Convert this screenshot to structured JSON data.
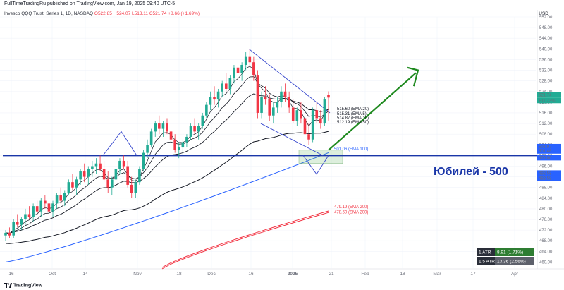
{
  "header": {
    "published": "FullTimeTradingRu published on TradingView.com, Jan 19, 2025 09:40 UTC-5",
    "symbol": "Invesco QQQ Trust, Series 1, 1D, NASDAQ",
    "ohlc": "O522.85 H524.07 L513.11 C521.74",
    "change": "+8.66 (+1.69%)",
    "currency": "USD"
  },
  "footer": {
    "brand": "TradingView"
  },
  "annotation": {
    "text": "Юбилей - 500"
  },
  "atr_table": [
    {
      "label": "1 ATR",
      "value": "8.91 (1.71%)"
    },
    {
      "label": "1.5 ATR",
      "value": "13.36 (2.56%)"
    }
  ],
  "colors": {
    "up": "#22ab94",
    "down": "#f23645",
    "ema200": "#f23645",
    "ema100": "#2962ff",
    "support": "#1a36a8",
    "arrow": "#1f8a1f",
    "channel": "#3344cc"
  },
  "chart_data": {
    "type": "candlestick",
    "ylim": [
      458,
      552
    ],
    "y_ticks": [
      460,
      464,
      468,
      472,
      476,
      480,
      484,
      488,
      492,
      496,
      500,
      504,
      508,
      512,
      516,
      520,
      524,
      528,
      532,
      536,
      540,
      544,
      548,
      552
    ],
    "x_ticks": [
      "16",
      "Oct",
      "14",
      "Nov",
      "18",
      "Dec",
      "16",
      "2025",
      "21",
      "Feb",
      "18",
      "Mar",
      "17",
      "Apr"
    ],
    "support_level": 500,
    "candles": [
      [
        470,
        472,
        468,
        471
      ],
      [
        471,
        473,
        469,
        470
      ],
      [
        470,
        476,
        469,
        475
      ],
      [
        475,
        478,
        473,
        474
      ],
      [
        474,
        477,
        472,
        476
      ],
      [
        476,
        480,
        474,
        478
      ],
      [
        478,
        481,
        476,
        477
      ],
      [
        477,
        482,
        475,
        481
      ],
      [
        481,
        483,
        478,
        479
      ],
      [
        479,
        484,
        477,
        483
      ],
      [
        483,
        485,
        480,
        482
      ],
      [
        482,
        484,
        478,
        479
      ],
      [
        479,
        483,
        477,
        482
      ],
      [
        482,
        486,
        480,
        485
      ],
      [
        485,
        488,
        482,
        483
      ],
      [
        483,
        487,
        481,
        486
      ],
      [
        486,
        491,
        485,
        490
      ],
      [
        490,
        493,
        487,
        488
      ],
      [
        488,
        492,
        485,
        491
      ],
      [
        491,
        495,
        489,
        494
      ],
      [
        494,
        497,
        490,
        492
      ],
      [
        492,
        496,
        489,
        495
      ],
      [
        495,
        498,
        492,
        496
      ],
      [
        496,
        499,
        493,
        497
      ],
      [
        497,
        500,
        494,
        495
      ],
      [
        495,
        498,
        490,
        491
      ],
      [
        491,
        494,
        486,
        488
      ],
      [
        488,
        492,
        485,
        491
      ],
      [
        491,
        496,
        490,
        495
      ],
      [
        495,
        499,
        493,
        498
      ],
      [
        498,
        500,
        495,
        496
      ],
      [
        496,
        498,
        488,
        489
      ],
      [
        489,
        492,
        484,
        486
      ],
      [
        486,
        491,
        484,
        490
      ],
      [
        490,
        496,
        489,
        495
      ],
      [
        495,
        502,
        494,
        501
      ],
      [
        501,
        506,
        499,
        504
      ],
      [
        504,
        510,
        503,
        509
      ],
      [
        509,
        513,
        507,
        512
      ],
      [
        512,
        515,
        508,
        510
      ],
      [
        510,
        513,
        507,
        512
      ],
      [
        512,
        514,
        508,
        509
      ],
      [
        509,
        511,
        504,
        506
      ],
      [
        506,
        508,
        501,
        502
      ],
      [
        502,
        505,
        499,
        503
      ],
      [
        503,
        506,
        500,
        505
      ],
      [
        505,
        508,
        503,
        507
      ],
      [
        507,
        512,
        506,
        511
      ],
      [
        511,
        514,
        508,
        509
      ],
      [
        509,
        512,
        506,
        511
      ],
      [
        511,
        516,
        510,
        515
      ],
      [
        515,
        520,
        514,
        519
      ],
      [
        519,
        524,
        517,
        522
      ],
      [
        522,
        526,
        519,
        521
      ],
      [
        521,
        525,
        518,
        524
      ],
      [
        524,
        528,
        522,
        527
      ],
      [
        527,
        531,
        524,
        525
      ],
      [
        525,
        530,
        523,
        529
      ],
      [
        529,
        534,
        527,
        533
      ],
      [
        533,
        536,
        530,
        531
      ],
      [
        531,
        535,
        528,
        534
      ],
      [
        534,
        539,
        532,
        537
      ],
      [
        537,
        540,
        533,
        535
      ],
      [
        535,
        537,
        528,
        530
      ],
      [
        530,
        532,
        514,
        516
      ],
      [
        516,
        524,
        514,
        522
      ],
      [
        522,
        526,
        519,
        521
      ],
      [
        521,
        523,
        513,
        515
      ],
      [
        515,
        520,
        512,
        518
      ],
      [
        518,
        522,
        516,
        520
      ],
      [
        520,
        526,
        518,
        524
      ],
      [
        524,
        527,
        520,
        522
      ],
      [
        522,
        524,
        516,
        518
      ],
      [
        518,
        521,
        512,
        513
      ],
      [
        513,
        518,
        511,
        517
      ],
      [
        517,
        520,
        512,
        514
      ],
      [
        514,
        516,
        507,
        508
      ],
      [
        508,
        512,
        504,
        506
      ],
      [
        506,
        518,
        505,
        517
      ],
      [
        517,
        520,
        512,
        514
      ],
      [
        514,
        517,
        510,
        512
      ],
      [
        512,
        522,
        511,
        521
      ],
      [
        522.85,
        524.07,
        513.11,
        521.74
      ]
    ],
    "series": [
      {
        "name": "EMA 10",
        "label": "514.87 (EMA 10)",
        "color": "#131722",
        "last": 514.87
      },
      {
        "name": "EMA 5",
        "label": "515.31 (EMA 5)",
        "color": "#131722",
        "last": 515.31
      },
      {
        "name": "EMA 20",
        "label": "515.60 (EMA 20)",
        "color": "#131722",
        "last": 515.6
      },
      {
        "name": "EMA 50",
        "label": "512.19 (EMA 50)",
        "color": "#131722",
        "last": 512.19
      },
      {
        "name": "EMA 100",
        "label": "501.06 (EMA 100)",
        "color": "#2962ff",
        "last": 501.06
      },
      {
        "name": "EMA 200",
        "label": "479.19 (EMA 200)",
        "color": "#f23645",
        "last": 479.19
      },
      {
        "name": "SMA 200",
        "label": "478.60 (SMA 200)",
        "color": "#f23645",
        "last": 478.6
      }
    ],
    "price_labels": [
      {
        "value": 521.74,
        "text": "521.74",
        "sub": "+11.23%",
        "color": "#22ab94"
      },
      {
        "value": 501.97,
        "text": "501.97",
        "color": "#2962ff"
      },
      {
        "value": 501.48,
        "text": "501.48",
        "color": "#2962ff"
      },
      {
        "value": 500.0,
        "text": "500.00",
        "color": "#2962ff"
      },
      {
        "value": 492.58,
        "text": "492.58",
        "color": "#2962ff"
      },
      {
        "value": 492.58,
        "text": "492.58",
        "color": "#2962ff"
      }
    ]
  }
}
